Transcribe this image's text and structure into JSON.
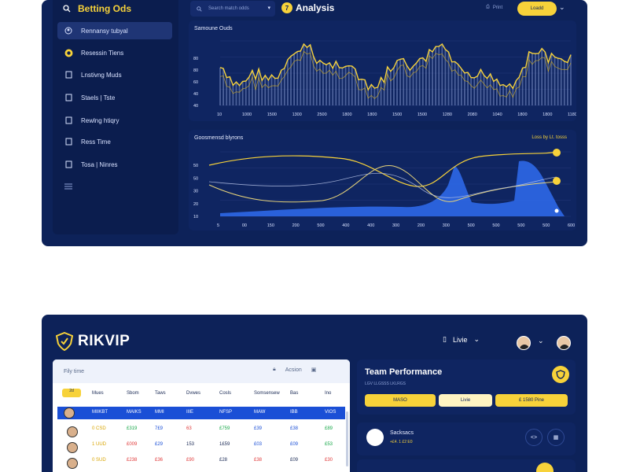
{
  "top": {
    "brand": "Betting Ods",
    "search_placeholder": "Search match odds",
    "analysis": {
      "badge": "7",
      "title": "Analysis"
    },
    "print_label": "Print",
    "yellow_button": "Loadd",
    "sidebar": [
      {
        "label": "Rennansy tubyal",
        "active": true,
        "icon": "user-icon"
      },
      {
        "label": "Resessin Tiens",
        "icon": "star-icon"
      },
      {
        "label": "Lnstivng Muds",
        "icon": "doc-icon"
      },
      {
        "label": "Staels | Tste",
        "icon": "doc-icon"
      },
      {
        "label": "Rewlng htiqry",
        "icon": "doc-icon"
      },
      {
        "label": "Ress Time",
        "icon": "doc-icon"
      },
      {
        "label": "Tosa | Ninres",
        "icon": "doc-icon"
      },
      {
        "label": "",
        "icon": "menu-icon"
      }
    ],
    "chart1": {
      "title": "Samoune Ouds",
      "y_ticks": [
        "80",
        "80",
        "60",
        "40",
        "40"
      ],
      "x_ticks": [
        "10",
        "1000",
        "1500",
        "1300",
        "2500",
        "1800",
        "1800",
        "1500",
        "1500",
        "1280",
        "2080",
        "1040",
        "1800",
        "1800",
        "1180"
      ]
    },
    "chart2": {
      "title": "Goosmensd blyrons",
      "legend": "Loss by Lt. tosss",
      "y_ticks": [
        "50",
        "50",
        "30",
        "20",
        "10"
      ],
      "x_ticks": [
        "5",
        "00",
        "150",
        "200",
        "500",
        "400",
        "400",
        "300",
        "200",
        "300",
        "500",
        "500",
        "500",
        "500",
        "600"
      ]
    }
  },
  "bottom": {
    "logo": "RIKVIP",
    "live": "Livie",
    "table": {
      "head_label": "Fily time",
      "action_label": "Acsion",
      "filter": "2d",
      "columns": [
        "Mues",
        "Sbom",
        "Taws",
        "Dvwes",
        "Cosls",
        "Somsensew",
        "Bas",
        "Ino"
      ],
      "highlight": [
        "MIIKBT",
        "MAIKS",
        "MMI",
        "IIIE",
        "NFSP",
        "MAW",
        "IBB",
        "VIOS"
      ],
      "rows": [
        [
          "0 CSD",
          "£319",
          "7£9",
          "63",
          "£759",
          "£39",
          "£38",
          "£89"
        ],
        [
          "1 UUD",
          "£009",
          "£29",
          "153",
          "1£59",
          "£03",
          "£09",
          "£53"
        ],
        [
          "0 SUD",
          "£238",
          "£36",
          "£90",
          "£28",
          "£38",
          "£09",
          "£30"
        ]
      ]
    },
    "team": {
      "title": "Team Performance",
      "sub": "LGV  LLGSSS  LKLRGS",
      "seg1": "MASO",
      "seg2": "Livie",
      "seg3": "£ 1580 Pine"
    },
    "stat": {
      "title": "Sacksacs",
      "sub": "+£4.  1 £2  E0",
      "ring1": "<>"
    }
  },
  "colors": {
    "bg": "#0d2259",
    "accent": "#f7d23a",
    "blue": "#1a4fd6"
  }
}
